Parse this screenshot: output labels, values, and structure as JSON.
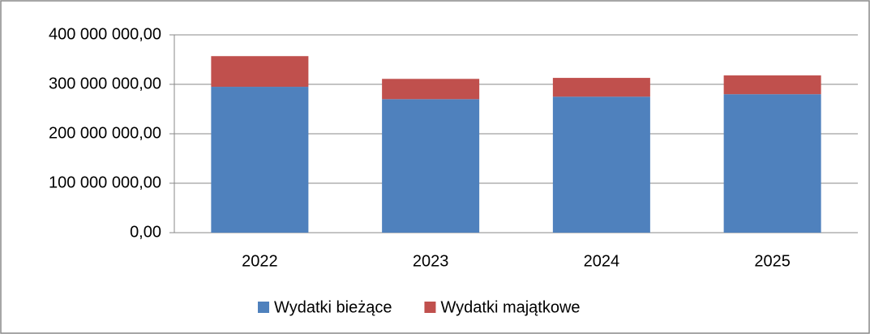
{
  "chart_data": {
    "type": "bar",
    "stacked": true,
    "categories": [
      "2022",
      "2023",
      "2024",
      "2025"
    ],
    "series": [
      {
        "name": "Wydatki bieżące",
        "color": "#4f81bd",
        "values": [
          295000000,
          270000000,
          275000000,
          280000000
        ]
      },
      {
        "name": "Wydatki majątkowe",
        "color": "#c0504d",
        "values": [
          62000000,
          41000000,
          38000000,
          38000000
        ]
      }
    ],
    "ylim": [
      0,
      400000000
    ],
    "yticks": [
      {
        "value": 0,
        "label": "0,00"
      },
      {
        "value": 100000000,
        "label": "100 000 000,00"
      },
      {
        "value": 200000000,
        "label": "200 000 000,00"
      },
      {
        "value": 300000000,
        "label": "300 000 000,00"
      },
      {
        "value": 400000000,
        "label": "400 000 000,00"
      }
    ],
    "grid": true,
    "legend": "bottom"
  }
}
